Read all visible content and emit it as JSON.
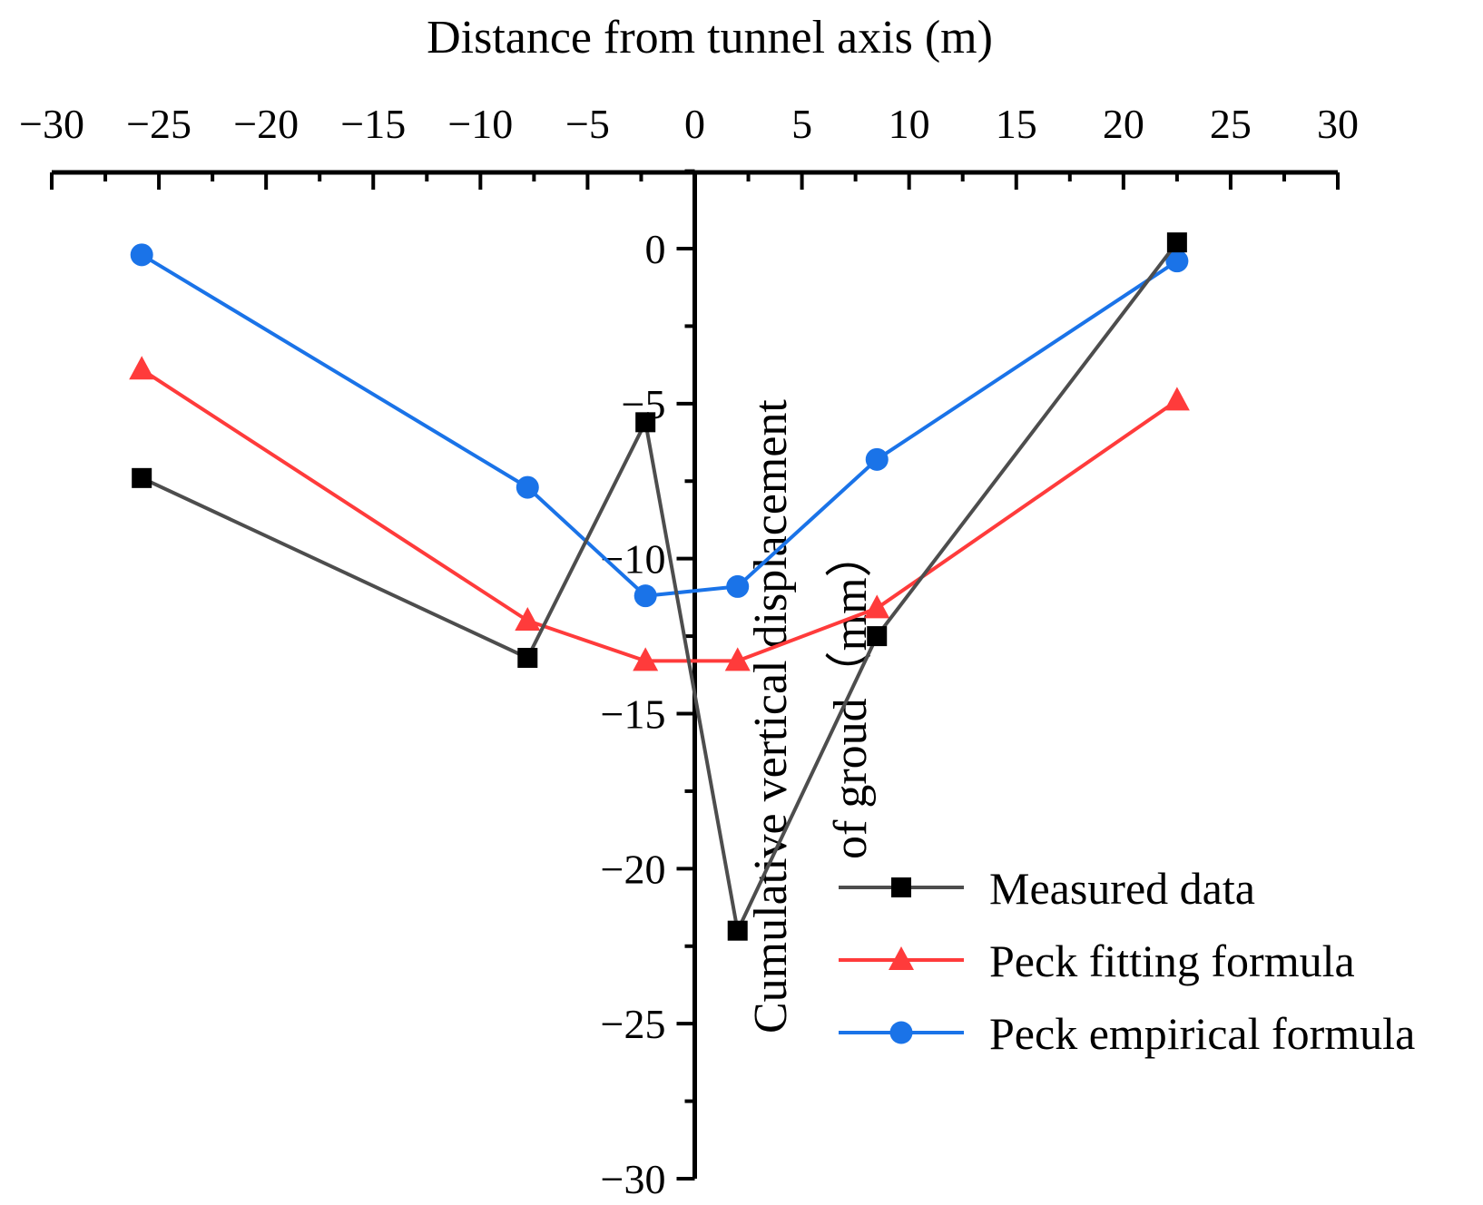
{
  "chart_data": {
    "type": "line",
    "title": "",
    "xlabel": "Distance from tunnel axis (m)",
    "ylabel_line1": "Cumulative vertical displacement",
    "ylabel_line2": "of groud（mm）",
    "xlim": [
      -30,
      30
    ],
    "ylim": [
      -30,
      2.5
    ],
    "x_ticks": [
      -30,
      -25,
      -20,
      -15,
      -10,
      -5,
      0,
      5,
      10,
      15,
      20,
      25,
      30
    ],
    "x_tick_labels": [
      "−30",
      "−25",
      "−20",
      "−15",
      "−10",
      "−5",
      "0",
      "5",
      "10",
      "15",
      "20",
      "25",
      "30"
    ],
    "y_ticks": [
      0,
      -5,
      -10,
      -15,
      -20,
      -25,
      -30
    ],
    "y_tick_labels": [
      "0",
      "−5",
      "−10",
      "−15",
      "−20",
      "−25",
      "−30"
    ],
    "x_axis_position": "top",
    "y_axis_position": "at x = 0",
    "grid": false,
    "legend_position": "bottom-right",
    "series": [
      {
        "name": "Measured data",
        "color": "#4d4d4d",
        "marker_color": "#000000",
        "marker": "square",
        "x": [
          -25.8,
          -7.8,
          -2.3,
          2.0,
          8.5,
          22.5
        ],
        "y": [
          -7.4,
          -13.2,
          -5.6,
          -22.0,
          -12.5,
          0.2
        ]
      },
      {
        "name": "Peck fitting formula",
        "color": "#ff3b3b",
        "marker_color": "#ff3b3b",
        "marker": "triangle",
        "x": [
          -25.8,
          -7.8,
          -2.3,
          2.0,
          8.5,
          22.5
        ],
        "y": [
          -3.9,
          -12.0,
          -13.3,
          -13.3,
          -11.6,
          -4.9
        ]
      },
      {
        "name": "Peck empirical formula",
        "color": "#1a73e8",
        "marker_color": "#1a73e8",
        "marker": "circle",
        "x": [
          -25.8,
          -7.8,
          -2.3,
          2.0,
          8.5,
          22.5
        ],
        "y": [
          -0.2,
          -7.7,
          -11.2,
          -10.9,
          -6.8,
          -0.4
        ]
      }
    ]
  }
}
